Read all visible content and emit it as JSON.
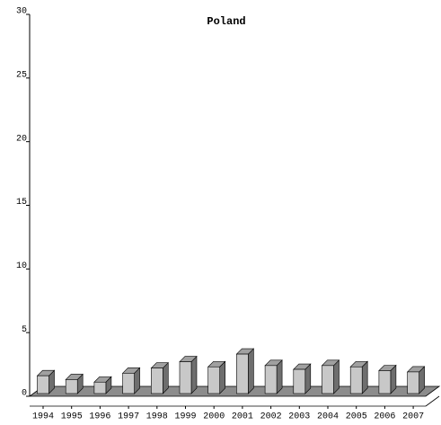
{
  "chart_data": {
    "type": "bar3d",
    "title": "Poland",
    "categories": [
      "1994",
      "1995",
      "1996",
      "1997",
      "1998",
      "1999",
      "2000",
      "2001",
      "2002",
      "2003",
      "2004",
      "2005",
      "2006",
      "2007"
    ],
    "values": [
      1.4,
      1.1,
      0.9,
      1.6,
      2.0,
      2.5,
      2.1,
      3.1,
      2.2,
      1.9,
      2.2,
      2.1,
      1.8,
      1.7
    ],
    "color": "#c8c8c8",
    "ylim": [
      0,
      30
    ],
    "yticks": [
      0,
      5,
      10,
      15,
      20,
      25,
      30
    ]
  }
}
